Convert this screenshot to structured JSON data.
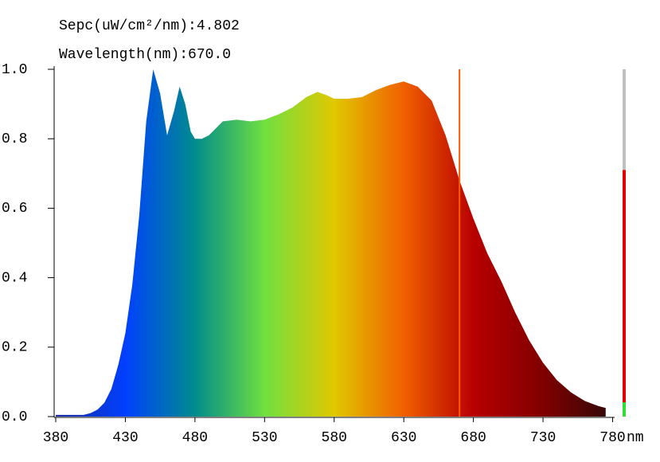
{
  "chart_data": {
    "type": "area",
    "readout": [
      "Sepc(uW/cm²/nm):4.802",
      "Wavelength(nm):670.0"
    ],
    "x": [
      380,
      390,
      400,
      405,
      410,
      415,
      420,
      425,
      430,
      435,
      440,
      445,
      450,
      455,
      460,
      465,
      469,
      473,
      477,
      480,
      485,
      490,
      495,
      500,
      510,
      520,
      530,
      540,
      550,
      560,
      568,
      575,
      580,
      590,
      600,
      610,
      620,
      630,
      640,
      650,
      660,
      670,
      680,
      690,
      700,
      710,
      720,
      730,
      740,
      750,
      760,
      770,
      775
    ],
    "values": [
      0.005,
      0.005,
      0.005,
      0.01,
      0.02,
      0.04,
      0.08,
      0.15,
      0.24,
      0.38,
      0.58,
      0.85,
      1.0,
      0.93,
      0.81,
      0.88,
      0.95,
      0.9,
      0.82,
      0.8,
      0.8,
      0.81,
      0.83,
      0.85,
      0.855,
      0.85,
      0.855,
      0.87,
      0.89,
      0.92,
      0.935,
      0.925,
      0.915,
      0.915,
      0.92,
      0.94,
      0.955,
      0.965,
      0.95,
      0.91,
      0.81,
      0.68,
      0.57,
      0.47,
      0.39,
      0.3,
      0.22,
      0.155,
      0.105,
      0.07,
      0.045,
      0.03,
      0.025
    ],
    "gradient": [
      "#1a2aa0",
      "#0040ff",
      "#008c8c",
      "#70e040",
      "#e0c800",
      "#f06000",
      "#b80000",
      "#800000",
      "#300808"
    ],
    "xlim": [
      380,
      780
    ],
    "ylim": [
      0,
      1
    ],
    "xticks": [
      380,
      430,
      480,
      530,
      580,
      630,
      680,
      730,
      780
    ],
    "x_unit": "nm",
    "yticks": [
      {
        "value": 0,
        "label": "0.0"
      },
      0.2,
      0.4,
      0.6,
      0.8,
      {
        "value": 1,
        "label": "1.0"
      }
    ],
    "cursor": 670,
    "cursor_color": "#ff5a00",
    "level": 0.71,
    "level_color": "#e00000"
  }
}
